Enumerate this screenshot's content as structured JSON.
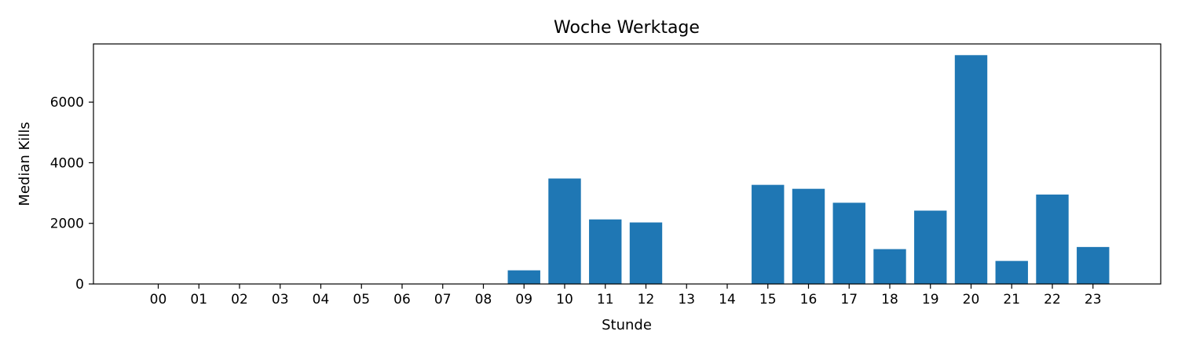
{
  "chart_data": {
    "type": "bar",
    "title": "Woche Werktage",
    "xlabel": "Stunde",
    "ylabel": "Median Kills",
    "categories": [
      "00",
      "01",
      "02",
      "03",
      "04",
      "05",
      "06",
      "07",
      "08",
      "09",
      "10",
      "11",
      "12",
      "13",
      "14",
      "15",
      "16",
      "17",
      "18",
      "19",
      "20",
      "21",
      "22",
      "23"
    ],
    "values": [
      0,
      0,
      0,
      0,
      0,
      0,
      0,
      0,
      0,
      450,
      3480,
      2130,
      2030,
      0,
      0,
      3270,
      3140,
      2680,
      1150,
      2420,
      7550,
      760,
      2950,
      1220
    ],
    "ylim": [
      0,
      7920
    ],
    "yticks": [
      0,
      2000,
      4000,
      6000
    ],
    "grid": false,
    "bar_color": "#1f77b4"
  }
}
